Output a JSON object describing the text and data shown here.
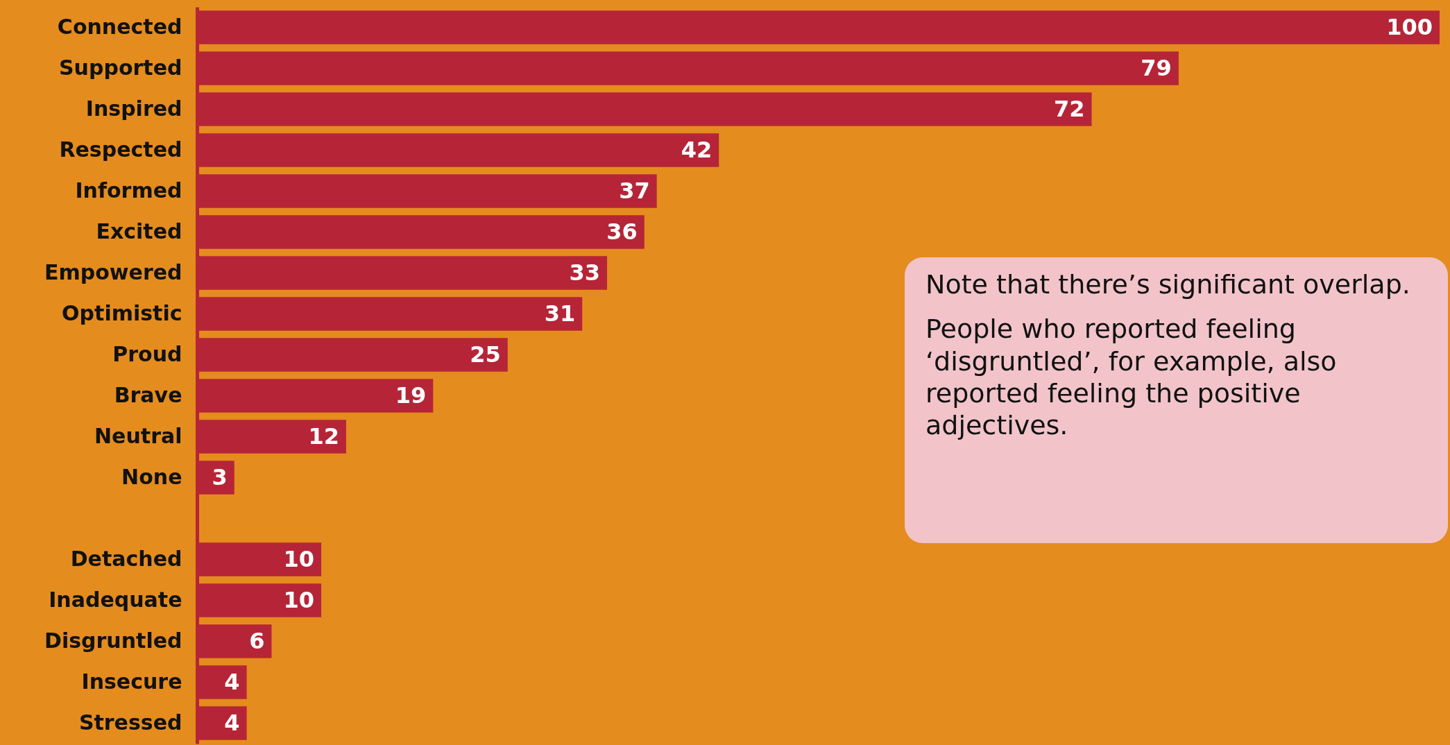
{
  "chart_data": {
    "type": "bar",
    "orientation": "horizontal",
    "categories": [
      "Connected",
      "Supported",
      "Inspired",
      "Respected",
      "Informed",
      "Excited",
      "Empowered",
      "Optimistic",
      "Proud",
      "Brave",
      "Neutral",
      "None",
      null,
      "Detached",
      "Inadequate",
      "Disgruntled",
      "Insecure",
      "Stressed"
    ],
    "values": [
      100,
      79,
      72,
      42,
      37,
      36,
      33,
      31,
      25,
      19,
      12,
      3,
      null,
      10,
      10,
      6,
      4,
      4
    ],
    "color": "#b52537",
    "xlim": [
      0,
      100
    ],
    "data_labels": true,
    "grid": false,
    "annotations": [
      "Note that there’s significant overlap.",
      "People who reported feeling ‘disgruntled’, for example, also reported feeling the positive adjectives."
    ]
  }
}
